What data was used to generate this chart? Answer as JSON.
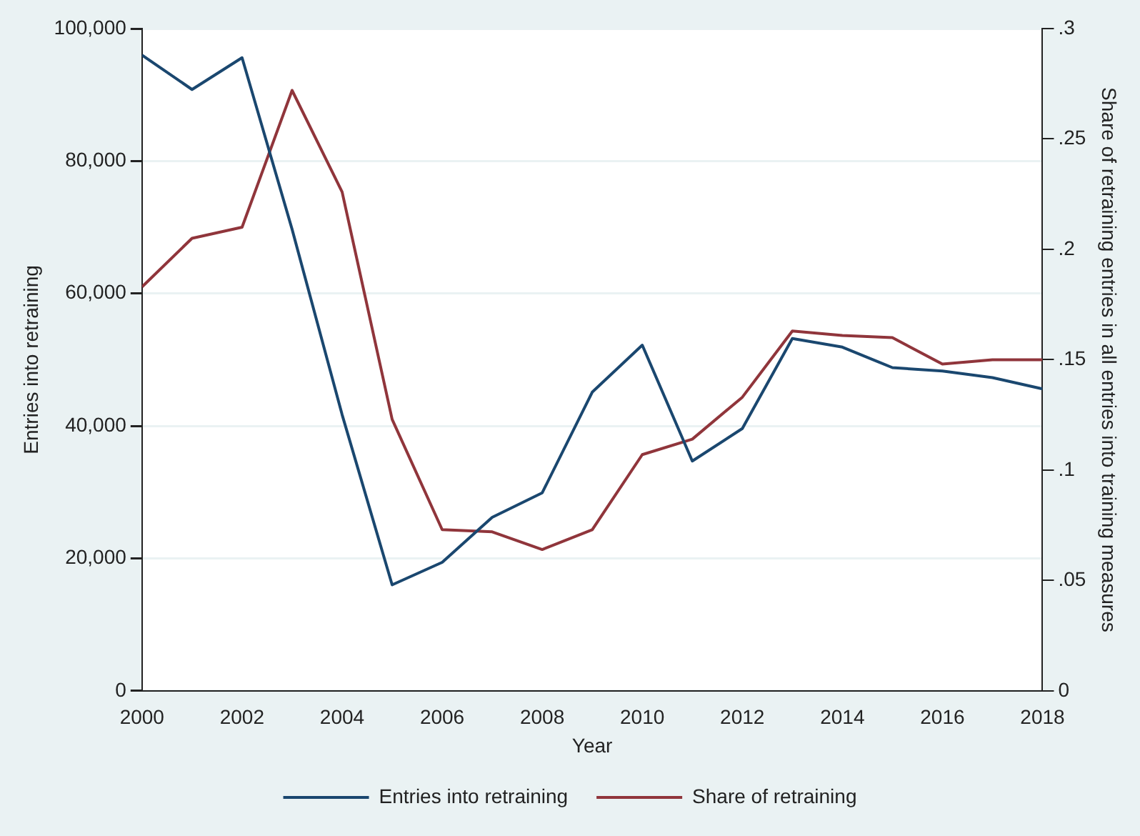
{
  "chart_data": {
    "type": "line",
    "x": [
      2000,
      2001,
      2002,
      2003,
      2004,
      2005,
      2006,
      2007,
      2008,
      2009,
      2010,
      2011,
      2012,
      2013,
      2014,
      2015,
      2016,
      2017,
      2018
    ],
    "xlabel": "Year",
    "ylabel": "Entries into retraining",
    "y2label": "Share of retraining entries in all entries into training measures",
    "series": [
      {
        "name": "Entries into retraining",
        "color": "#1a476f",
        "values": [
          96000,
          90800,
          95600,
          69700,
          41700,
          16000,
          19400,
          26200,
          29900,
          45100,
          52200,
          34700,
          39600,
          53200,
          51900,
          48800,
          48300,
          47300,
          45600
        ]
      },
      {
        "name": "Share of retraining",
        "color": "#90353b",
        "axis": "y2",
        "values": [
          0.183,
          0.205,
          0.21,
          0.272,
          0.226,
          0.123,
          0.073,
          0.072,
          0.064,
          0.073,
          0.107,
          0.114,
          0.133,
          0.163,
          0.161,
          0.16,
          0.148,
          0.15,
          0.15
        ]
      }
    ],
    "xlim": [
      2000,
      2018
    ],
    "xticks": [
      2000,
      2002,
      2004,
      2006,
      2008,
      2010,
      2012,
      2014,
      2016,
      2018
    ],
    "ylim": [
      0,
      100000
    ],
    "yticks": [
      0,
      {
        "value": 20000,
        "label": "20,000"
      },
      {
        "value": 40000,
        "label": "40,000"
      },
      {
        "value": 60000,
        "label": "60,000"
      },
      {
        "value": 80000,
        "label": "80,000"
      },
      {
        "value": 100000,
        "label": "100,000"
      }
    ],
    "y2lim": [
      0,
      0.3
    ],
    "y2ticks": [
      0,
      {
        "value": 0.05,
        "label": ".05"
      },
      {
        "value": 0.1,
        "label": ".1"
      },
      {
        "value": 0.15,
        "label": ".15"
      },
      {
        "value": 0.2,
        "label": ".2"
      },
      {
        "value": 0.25,
        "label": ".25"
      },
      {
        "value": 0.3,
        "label": ".3"
      }
    ],
    "grid": "y",
    "legend": "bottom",
    "marker": "none",
    "line_style": "solid"
  }
}
